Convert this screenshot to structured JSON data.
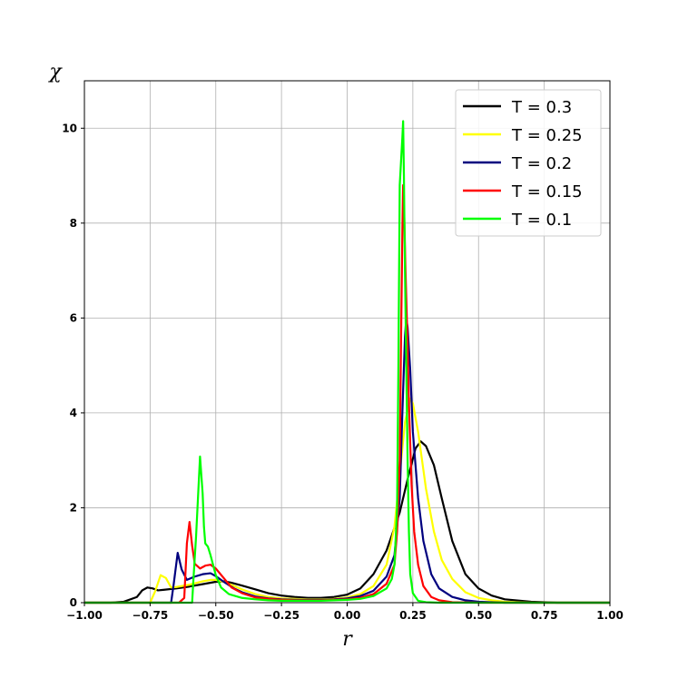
{
  "chart_data": {
    "type": "line",
    "xlabel": "r",
    "ylabel": "χ",
    "xlim": [
      -1.0,
      1.0
    ],
    "ylim": [
      0,
      11
    ],
    "grid": true,
    "legend_position": "top-right",
    "x_ticks": [
      {
        "value": -1.0,
        "label": "−1.00"
      },
      {
        "value": -0.75,
        "label": "−0.75"
      },
      {
        "value": -0.5,
        "label": "−0.50"
      },
      {
        "value": -0.25,
        "label": "−0.25"
      },
      {
        "value": 0.0,
        "label": "0.00"
      },
      {
        "value": 0.25,
        "label": "0.25"
      },
      {
        "value": 0.5,
        "label": "0.50"
      },
      {
        "value": 0.75,
        "label": "0.75"
      },
      {
        "value": 1.0,
        "label": "1.00"
      }
    ],
    "y_ticks": [
      {
        "value": 0,
        "label": "0"
      },
      {
        "value": 2,
        "label": "2"
      },
      {
        "value": 4,
        "label": "4"
      },
      {
        "value": 6,
        "label": "6"
      },
      {
        "value": 8,
        "label": "8"
      },
      {
        "value": 10,
        "label": "10"
      }
    ],
    "series": [
      {
        "name": "T = 0.3",
        "color": "#000000",
        "points": [
          [
            -1.0,
            0
          ],
          [
            -0.9,
            0.0
          ],
          [
            -0.85,
            0.02
          ],
          [
            -0.8,
            0.12
          ],
          [
            -0.78,
            0.26
          ],
          [
            -0.76,
            0.32
          ],
          [
            -0.74,
            0.3
          ],
          [
            -0.72,
            0.26
          ],
          [
            -0.7,
            0.27
          ],
          [
            -0.65,
            0.3
          ],
          [
            -0.6,
            0.34
          ],
          [
            -0.55,
            0.39
          ],
          [
            -0.5,
            0.44
          ],
          [
            -0.47,
            0.45
          ],
          [
            -0.44,
            0.42
          ],
          [
            -0.4,
            0.36
          ],
          [
            -0.35,
            0.28
          ],
          [
            -0.3,
            0.2
          ],
          [
            -0.25,
            0.15
          ],
          [
            -0.2,
            0.12
          ],
          [
            -0.15,
            0.1
          ],
          [
            -0.1,
            0.1
          ],
          [
            -0.05,
            0.12
          ],
          [
            0.0,
            0.17
          ],
          [
            0.05,
            0.3
          ],
          [
            0.1,
            0.6
          ],
          [
            0.15,
            1.1
          ],
          [
            0.2,
            1.9
          ],
          [
            0.23,
            2.6
          ],
          [
            0.26,
            3.25
          ],
          [
            0.28,
            3.4
          ],
          [
            0.3,
            3.3
          ],
          [
            0.33,
            2.9
          ],
          [
            0.36,
            2.2
          ],
          [
            0.4,
            1.3
          ],
          [
            0.45,
            0.6
          ],
          [
            0.5,
            0.3
          ],
          [
            0.55,
            0.15
          ],
          [
            0.6,
            0.07
          ],
          [
            0.7,
            0.02
          ],
          [
            0.8,
            0.0
          ],
          [
            1.0,
            0.0
          ]
        ]
      },
      {
        "name": "T = 0.25",
        "color": "#ffff00",
        "points": [
          [
            -1.0,
            0
          ],
          [
            -0.8,
            0.0
          ],
          [
            -0.75,
            0.0
          ],
          [
            -0.73,
            0.25
          ],
          [
            -0.71,
            0.58
          ],
          [
            -0.69,
            0.52
          ],
          [
            -0.67,
            0.32
          ],
          [
            -0.65,
            0.33
          ],
          [
            -0.6,
            0.38
          ],
          [
            -0.55,
            0.45
          ],
          [
            -0.52,
            0.48
          ],
          [
            -0.5,
            0.48
          ],
          [
            -0.47,
            0.44
          ],
          [
            -0.43,
            0.35
          ],
          [
            -0.4,
            0.28
          ],
          [
            -0.35,
            0.18
          ],
          [
            -0.3,
            0.12
          ],
          [
            -0.25,
            0.09
          ],
          [
            -0.2,
            0.08
          ],
          [
            -0.15,
            0.07
          ],
          [
            -0.1,
            0.07
          ],
          [
            -0.05,
            0.08
          ],
          [
            0.0,
            0.11
          ],
          [
            0.05,
            0.18
          ],
          [
            0.1,
            0.35
          ],
          [
            0.15,
            0.8
          ],
          [
            0.18,
            1.6
          ],
          [
            0.2,
            2.7
          ],
          [
            0.22,
            3.8
          ],
          [
            0.24,
            4.3
          ],
          [
            0.25,
            4.2
          ],
          [
            0.27,
            3.6
          ],
          [
            0.3,
            2.4
          ],
          [
            0.33,
            1.5
          ],
          [
            0.36,
            0.9
          ],
          [
            0.4,
            0.5
          ],
          [
            0.45,
            0.22
          ],
          [
            0.5,
            0.1
          ],
          [
            0.55,
            0.05
          ],
          [
            0.6,
            0.02
          ],
          [
            0.7,
            0.0
          ],
          [
            1.0,
            0.0
          ]
        ]
      },
      {
        "name": "T = 0.2",
        "color": "#00007f",
        "points": [
          [
            -1.0,
            0
          ],
          [
            -0.7,
            0.0
          ],
          [
            -0.67,
            0.0
          ],
          [
            -0.66,
            0.4
          ],
          [
            -0.645,
            1.05
          ],
          [
            -0.63,
            0.7
          ],
          [
            -0.61,
            0.48
          ],
          [
            -0.58,
            0.55
          ],
          [
            -0.55,
            0.6
          ],
          [
            -0.52,
            0.62
          ],
          [
            -0.5,
            0.56
          ],
          [
            -0.47,
            0.44
          ],
          [
            -0.43,
            0.3
          ],
          [
            -0.4,
            0.22
          ],
          [
            -0.35,
            0.13
          ],
          [
            -0.3,
            0.09
          ],
          [
            -0.25,
            0.07
          ],
          [
            -0.2,
            0.06
          ],
          [
            -0.15,
            0.06
          ],
          [
            -0.1,
            0.06
          ],
          [
            -0.05,
            0.07
          ],
          [
            0.0,
            0.09
          ],
          [
            0.05,
            0.14
          ],
          [
            0.1,
            0.25
          ],
          [
            0.15,
            0.55
          ],
          [
            0.18,
            1.0
          ],
          [
            0.2,
            2.2
          ],
          [
            0.21,
            4.0
          ],
          [
            0.22,
            5.6
          ],
          [
            0.225,
            6.0
          ],
          [
            0.23,
            5.8
          ],
          [
            0.24,
            4.9
          ],
          [
            0.25,
            3.6
          ],
          [
            0.27,
            2.2
          ],
          [
            0.29,
            1.3
          ],
          [
            0.32,
            0.6
          ],
          [
            0.35,
            0.3
          ],
          [
            0.4,
            0.12
          ],
          [
            0.45,
            0.05
          ],
          [
            0.5,
            0.02
          ],
          [
            0.6,
            0.0
          ],
          [
            1.0,
            0.0
          ]
        ]
      },
      {
        "name": "T = 0.15",
        "color": "#ff0000",
        "points": [
          [
            -1.0,
            0
          ],
          [
            -0.65,
            0.0
          ],
          [
            -0.64,
            0.0
          ],
          [
            -0.62,
            0.1
          ],
          [
            -0.61,
            1.25
          ],
          [
            -0.6,
            1.7
          ],
          [
            -0.59,
            1.2
          ],
          [
            -0.58,
            0.82
          ],
          [
            -0.56,
            0.72
          ],
          [
            -0.54,
            0.78
          ],
          [
            -0.52,
            0.8
          ],
          [
            -0.5,
            0.72
          ],
          [
            -0.47,
            0.52
          ],
          [
            -0.44,
            0.32
          ],
          [
            -0.4,
            0.2
          ],
          [
            -0.35,
            0.11
          ],
          [
            -0.3,
            0.08
          ],
          [
            -0.25,
            0.06
          ],
          [
            -0.2,
            0.05
          ],
          [
            -0.15,
            0.05
          ],
          [
            -0.1,
            0.05
          ],
          [
            -0.05,
            0.06
          ],
          [
            0.0,
            0.07
          ],
          [
            0.05,
            0.1
          ],
          [
            0.1,
            0.18
          ],
          [
            0.15,
            0.4
          ],
          [
            0.18,
            0.8
          ],
          [
            0.19,
            1.5
          ],
          [
            0.2,
            3.0
          ],
          [
            0.205,
            5.5
          ],
          [
            0.21,
            7.8
          ],
          [
            0.213,
            8.8
          ],
          [
            0.217,
            8.2
          ],
          [
            0.222,
            7.0
          ],
          [
            0.228,
            5.8
          ],
          [
            0.235,
            4.2
          ],
          [
            0.245,
            2.5
          ],
          [
            0.255,
            1.5
          ],
          [
            0.27,
            0.8
          ],
          [
            0.29,
            0.35
          ],
          [
            0.32,
            0.12
          ],
          [
            0.35,
            0.05
          ],
          [
            0.4,
            0.01
          ],
          [
            0.5,
            0.0
          ],
          [
            1.0,
            0.0
          ]
        ]
      },
      {
        "name": "T = 0.1",
        "color": "#00ff00",
        "points": [
          [
            -1.0,
            0
          ],
          [
            -0.6,
            0.0
          ],
          [
            -0.59,
            0.0
          ],
          [
            -0.585,
            0.5
          ],
          [
            -0.575,
            1.4
          ],
          [
            -0.56,
            3.08
          ],
          [
            -0.55,
            2.3
          ],
          [
            -0.545,
            1.6
          ],
          [
            -0.54,
            1.25
          ],
          [
            -0.53,
            1.18
          ],
          [
            -0.52,
            1.0
          ],
          [
            -0.5,
            0.58
          ],
          [
            -0.48,
            0.32
          ],
          [
            -0.45,
            0.18
          ],
          [
            -0.4,
            0.1
          ],
          [
            -0.35,
            0.07
          ],
          [
            -0.3,
            0.05
          ],
          [
            -0.25,
            0.04
          ],
          [
            -0.2,
            0.04
          ],
          [
            -0.15,
            0.04
          ],
          [
            -0.1,
            0.04
          ],
          [
            -0.05,
            0.05
          ],
          [
            0.0,
            0.06
          ],
          [
            0.05,
            0.08
          ],
          [
            0.1,
            0.14
          ],
          [
            0.15,
            0.3
          ],
          [
            0.17,
            0.5
          ],
          [
            0.18,
            0.8
          ],
          [
            0.19,
            2.0
          ],
          [
            0.195,
            5.0
          ],
          [
            0.2,
            8.8
          ],
          [
            0.205,
            9.3
          ],
          [
            0.21,
            9.8
          ],
          [
            0.213,
            10.15
          ],
          [
            0.216,
            9.0
          ],
          [
            0.22,
            7.0
          ],
          [
            0.225,
            5.0
          ],
          [
            0.23,
            3.0
          ],
          [
            0.235,
            1.5
          ],
          [
            0.24,
            0.6
          ],
          [
            0.25,
            0.2
          ],
          [
            0.27,
            0.04
          ],
          [
            0.3,
            0.01
          ],
          [
            0.35,
            0.0
          ],
          [
            1.0,
            0.0
          ]
        ]
      }
    ]
  }
}
